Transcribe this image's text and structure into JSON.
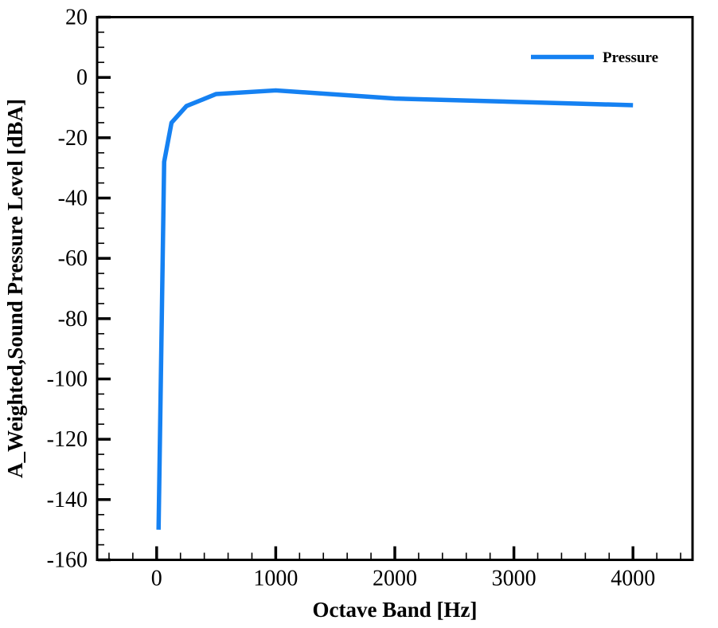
{
  "chart_data": {
    "type": "line",
    "title": "",
    "xlabel": "Octave Band [Hz]",
    "ylabel": "A_Weighted,Sound Pressure Level [dBA]",
    "xlim": [
      -500,
      4500
    ],
    "ylim": [
      -160,
      20
    ],
    "x_major_ticks": [
      0,
      1000,
      2000,
      3000,
      4000
    ],
    "x_tick_labels": [
      "0",
      "1000",
      "2000",
      "3000",
      "4000"
    ],
    "x_minor_step": 200,
    "y_major_ticks": [
      20,
      0,
      -20,
      -40,
      -60,
      -80,
      -100,
      -120,
      -140,
      -160
    ],
    "y_tick_labels": [
      "20",
      "0",
      "-20",
      "-40",
      "-60",
      "-80",
      "-100",
      "-120",
      "-140",
      "-160"
    ],
    "y_minor_step": 5,
    "grid": false,
    "legend_position": "top-right-inside",
    "series": [
      {
        "name": "Pressure",
        "color": "#1581f2",
        "x": [
          16,
          63,
          125,
          250,
          500,
          1000,
          2000,
          4000
        ],
        "y": [
          -150,
          -28,
          -15,
          -9.5,
          -5.5,
          -4.3,
          -7,
          -9.2
        ]
      }
    ]
  },
  "colors": {
    "axis": "#000000",
    "background": "#ffffff",
    "series_blue": "#1581f2"
  }
}
